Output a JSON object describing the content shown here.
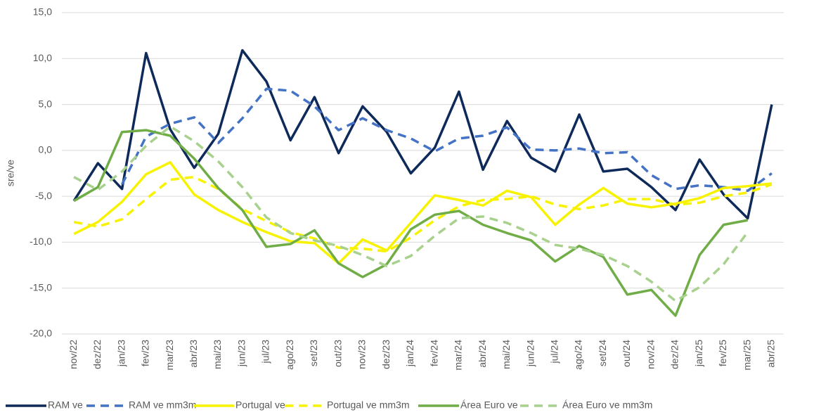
{
  "chart_data": {
    "type": "line",
    "y_label": "sre/ve",
    "categories": [
      "nov/22",
      "dez/22",
      "jan/23",
      "fev/23",
      "mar/23",
      "abr/23",
      "mai/23",
      "jun/23",
      "jul/23",
      "ago/23",
      "set/23",
      "out/23",
      "nov/23",
      "dez/23",
      "jan/24",
      "fev/24",
      "mar/24",
      "abr/24",
      "mai/24",
      "jun/24",
      "jul/24",
      "ago/24",
      "set/24",
      "out/24",
      "nov/24",
      "dez/24",
      "jan/25",
      "fev/25",
      "mar/25",
      "abr/25"
    ],
    "ylim": [
      -20,
      15
    ],
    "yticks": [
      {
        "value": -20,
        "label": "-20,0"
      },
      {
        "value": -15,
        "label": "-15,0"
      },
      {
        "value": -10,
        "label": "-10,0"
      },
      {
        "value": -5,
        "label": "-5,0"
      },
      {
        "value": 0,
        "label": "0,0"
      },
      {
        "value": 5,
        "label": "5,0"
      },
      {
        "value": 10,
        "label": "10,0"
      },
      {
        "value": 15,
        "label": "15,0"
      }
    ],
    "grid": true,
    "legend": "bottom",
    "series": [
      {
        "name": "RAM ve",
        "color": "#0e2a5a",
        "dashed": false,
        "values": [
          -5.5,
          -1.4,
          -4.2,
          10.6,
          2.3,
          -1.9,
          1.8,
          10.9,
          7.5,
          1.1,
          5.8,
          -0.3,
          4.8,
          2.0,
          -2.5,
          0.3,
          6.4,
          -2.1,
          3.2,
          -0.8,
          -2.3,
          3.9,
          -2.3,
          -2.0,
          -4.0,
          -6.5,
          -1.0,
          -4.8,
          -7.4,
          5.0
        ]
      },
      {
        "name": "RAM ve mm3m",
        "color": "#4472c4",
        "dashed": true,
        "values": [
          null,
          null,
          -3.7,
          1.5,
          2.9,
          3.6,
          0.8,
          3.5,
          6.7,
          6.5,
          4.8,
          2.2,
          3.5,
          2.2,
          1.3,
          -0.1,
          1.3,
          1.6,
          2.5,
          0.1,
          0.0,
          0.2,
          -0.3,
          -0.2,
          -2.7,
          -4.2,
          -3.8,
          -4.0,
          -4.4,
          -2.5
        ]
      },
      {
        "name": "Portugal ve",
        "color": "#f7f300",
        "dashed": false,
        "values": [
          -9.1,
          -7.8,
          -5.6,
          -2.6,
          -1.3,
          -4.8,
          -6.5,
          -7.8,
          -8.9,
          -9.9,
          -10.1,
          -12.3,
          -9.7,
          -10.9,
          -7.9,
          -4.9,
          -5.4,
          -6.0,
          -4.4,
          -5.1,
          -8.1,
          -5.9,
          -4.1,
          -5.8,
          -6.2,
          -5.8,
          -5.2,
          -4.1,
          -3.9,
          -3.6
        ]
      },
      {
        "name": "Portugal ve mm3m",
        "color": "#f7f300",
        "dashed": true,
        "values": [
          -7.8,
          -8.3,
          -7.5,
          -5.3,
          -3.2,
          -2.9,
          -4.2,
          -6.4,
          -7.7,
          -8.9,
          -9.6,
          -10.6,
          -10.7,
          -11.0,
          -9.5,
          -7.6,
          -6.1,
          -5.4,
          -5.3,
          -5.0,
          -5.9,
          -6.4,
          -6.0,
          -5.3,
          -5.3,
          -5.9,
          -5.7,
          -5.0,
          -4.6,
          -3.7
        ]
      },
      {
        "name": "Área Euro ve",
        "color": "#70ad47",
        "dashed": false,
        "values": [
          -5.5,
          -4.0,
          2.0,
          2.2,
          1.6,
          -0.9,
          -4.1,
          -6.5,
          -10.5,
          -10.2,
          -8.7,
          -12.3,
          -13.8,
          -12.4,
          -8.6,
          -7.0,
          -6.6,
          -8.1,
          -9.0,
          -9.8,
          -12.1,
          -10.4,
          -11.6,
          -15.7,
          -15.2,
          -18.0,
          -11.4,
          -8.1,
          -7.6,
          null
        ]
      },
      {
        "name": "Área Euro ve mm3m",
        "color": "#a9d18e",
        "dashed": true,
        "values": [
          -2.9,
          -4.3,
          -2.3,
          0.5,
          2.6,
          1.0,
          -1.2,
          -4.0,
          -7.3,
          -9.0,
          -9.8,
          -10.4,
          -11.4,
          -12.6,
          -11.5,
          -9.3,
          -7.4,
          -7.2,
          -7.9,
          -9.0,
          -10.3,
          -10.7,
          -11.4,
          -12.6,
          -14.3,
          -16.4,
          -14.9,
          -12.4,
          -8.9,
          null
        ]
      }
    ]
  }
}
